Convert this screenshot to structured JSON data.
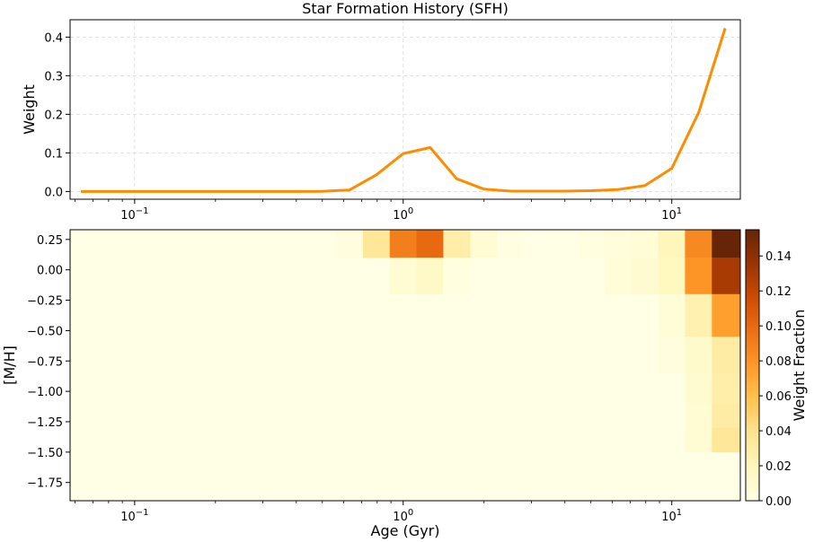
{
  "chart_data": [
    {
      "type": "line",
      "title": "Star Formation History (SFH)",
      "xlabel": "",
      "ylabel": "Weight",
      "xscale": "log",
      "xlim": [
        0.0575,
        18.0
      ],
      "ylim": [
        -0.02,
        0.445
      ],
      "grid": true,
      "line_color": "#ff8c00",
      "yticks": [
        0.0,
        0.1,
        0.2,
        0.3,
        0.4
      ],
      "ytick_labels": [
        "0.0",
        "0.1",
        "0.2",
        "0.3",
        "0.4"
      ],
      "xticks": [
        0.1,
        1,
        10
      ],
      "xtick_labels": [
        {
          "base": "10",
          "exp": "−1"
        },
        {
          "base": "10",
          "exp": "0"
        },
        {
          "base": "10",
          "exp": "1"
        }
      ],
      "series": [
        {
          "name": "SFH",
          "x": [
            0.0631,
            0.0794,
            0.1,
            0.126,
            0.158,
            0.2,
            0.251,
            0.316,
            0.398,
            0.501,
            0.631,
            0.794,
            1.0,
            1.26,
            1.58,
            2.0,
            2.51,
            3.16,
            3.98,
            5.01,
            6.31,
            7.94,
            10.0,
            12.6,
            15.8
          ],
          "values": [
            0,
            0,
            0,
            0,
            0,
            0,
            0,
            0,
            0,
            0.0005,
            0.004,
            0.043,
            0.098,
            0.114,
            0.033,
            0.006,
            0.001,
            0.001,
            0.001,
            0.002,
            0.005,
            0.015,
            0.06,
            0.205,
            0.423
          ]
        }
      ]
    },
    {
      "type": "heatmap",
      "title": "",
      "xlabel": "Age (Gyr)",
      "ylabel": "[M/H]",
      "xscale": "log",
      "xlim": [
        0.0575,
        18.0
      ],
      "ylim": [
        -1.9,
        0.33
      ],
      "yticks": [
        0.25,
        0.0,
        -0.25,
        -0.5,
        -0.75,
        -1.0,
        -1.25,
        -1.5,
        -1.75
      ],
      "ytick_labels": [
        "0.25",
        "0.00",
        "−0.25",
        "−0.50",
        "−0.75",
        "−1.00",
        "−1.25",
        "−1.50",
        "−1.75"
      ],
      "xticks": [
        0.1,
        1,
        10
      ],
      "xtick_labels": [
        {
          "base": "10",
          "exp": "−1"
        },
        {
          "base": "10",
          "exp": "0"
        },
        {
          "base": "10",
          "exp": "1"
        }
      ],
      "colormap": "YlOrBr",
      "vmin": 0,
      "vmax": 0.155,
      "colorbar": {
        "label": "Weight Fraction",
        "ticks": [
          0.0,
          0.02,
          0.04,
          0.06,
          0.08,
          0.1,
          0.12,
          0.14
        ],
        "tick_labels": [
          "0.00",
          "0.02",
          "0.04",
          "0.06",
          "0.08",
          "0.10",
          "0.12",
          "0.14"
        ]
      },
      "age_edges": [
        0.0575,
        0.0708,
        0.0891,
        0.112,
        0.141,
        0.178,
        0.224,
        0.282,
        0.355,
        0.447,
        0.562,
        0.708,
        0.891,
        1.12,
        1.41,
        1.78,
        2.24,
        2.82,
        3.55,
        4.47,
        5.62,
        7.08,
        8.91,
        11.2,
        14.1,
        18.0
      ],
      "metal_edges": [
        -1.9,
        -1.5,
        -1.3,
        -1.1,
        -0.85,
        -0.55,
        -0.2,
        0.1,
        0.33
      ],
      "cells": [
        {
          "age_index": 10,
          "metal_index": 7,
          "value": 0.004
        },
        {
          "age_index": 11,
          "metal_index": 7,
          "value": 0.035
        },
        {
          "age_index": 12,
          "metal_index": 7,
          "value": 0.09
        },
        {
          "age_index": 13,
          "metal_index": 7,
          "value": 0.1
        },
        {
          "age_index": 14,
          "metal_index": 7,
          "value": 0.028
        },
        {
          "age_index": 15,
          "metal_index": 7,
          "value": 0.008
        },
        {
          "age_index": 16,
          "metal_index": 7,
          "value": 0.002
        },
        {
          "age_index": 12,
          "metal_index": 6,
          "value": 0.008
        },
        {
          "age_index": 13,
          "metal_index": 6,
          "value": 0.014
        },
        {
          "age_index": 14,
          "metal_index": 6,
          "value": 0.003
        },
        {
          "age_index": 19,
          "metal_index": 7,
          "value": 0.003
        },
        {
          "age_index": 20,
          "metal_index": 7,
          "value": 0.005
        },
        {
          "age_index": 21,
          "metal_index": 7,
          "value": 0.007
        },
        {
          "age_index": 22,
          "metal_index": 7,
          "value": 0.02
        },
        {
          "age_index": 23,
          "metal_index": 7,
          "value": 0.085
        },
        {
          "age_index": 24,
          "metal_index": 7,
          "value": 0.155
        },
        {
          "age_index": 20,
          "metal_index": 6,
          "value": 0.006
        },
        {
          "age_index": 21,
          "metal_index": 6,
          "value": 0.01
        },
        {
          "age_index": 22,
          "metal_index": 6,
          "value": 0.018
        },
        {
          "age_index": 23,
          "metal_index": 6,
          "value": 0.08
        },
        {
          "age_index": 24,
          "metal_index": 6,
          "value": 0.13
        },
        {
          "age_index": 22,
          "metal_index": 5,
          "value": 0.006
        },
        {
          "age_index": 23,
          "metal_index": 5,
          "value": 0.025
        },
        {
          "age_index": 24,
          "metal_index": 5,
          "value": 0.075
        },
        {
          "age_index": 22,
          "metal_index": 4,
          "value": 0.004
        },
        {
          "age_index": 23,
          "metal_index": 4,
          "value": 0.012
        },
        {
          "age_index": 24,
          "metal_index": 4,
          "value": 0.03
        },
        {
          "age_index": 23,
          "metal_index": 3,
          "value": 0.01
        },
        {
          "age_index": 24,
          "metal_index": 3,
          "value": 0.028
        },
        {
          "age_index": 23,
          "metal_index": 2,
          "value": 0.009
        },
        {
          "age_index": 24,
          "metal_index": 2,
          "value": 0.03
        },
        {
          "age_index": 23,
          "metal_index": 1,
          "value": 0.008
        },
        {
          "age_index": 24,
          "metal_index": 1,
          "value": 0.035
        }
      ]
    }
  ]
}
